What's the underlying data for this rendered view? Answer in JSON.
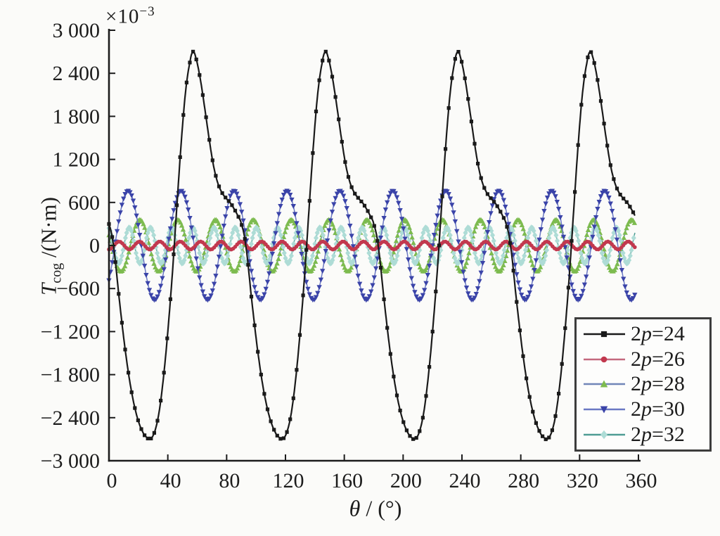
{
  "figure": {
    "y_axis_multiplier": {
      "base": "×10",
      "exponent": "−3"
    },
    "y_axis_label": {
      "symbol": "T",
      "subscript": "cog",
      "rest": " /(N·m)"
    },
    "x_axis_label": {
      "symbol": "θ",
      "rest": " / (°)"
    }
  },
  "chart_data": {
    "type": "line",
    "title": "",
    "xlabel": "θ / (°)",
    "ylabel": "T_cog /(N·m), values ×10^−3",
    "x_range": [
      0,
      360
    ],
    "y_range": [
      -3000,
      3000
    ],
    "grid": false,
    "legend_position": "lower-right",
    "x_sample_end": 357.6,
    "x_ticks": [
      {
        "v": 0,
        "label": "0"
      },
      {
        "v": 40,
        "label": "40"
      },
      {
        "v": 80,
        "label": "80"
      },
      {
        "v": 120,
        "label": "120"
      },
      {
        "v": 160,
        "label": "160"
      },
      {
        "v": 200,
        "label": "200"
      },
      {
        "v": 240,
        "label": "240"
      },
      {
        "v": 280,
        "label": "280"
      },
      {
        "v": 320,
        "label": "320"
      },
      {
        "v": 360,
        "label": "360"
      }
    ],
    "y_ticks": [
      {
        "v": 3000,
        "label": "3 000"
      },
      {
        "v": 2400,
        "label": "2 400"
      },
      {
        "v": 1800,
        "label": "1 800"
      },
      {
        "v": 1200,
        "label": "1 200"
      },
      {
        "v": 600,
        "label": "600"
      },
      {
        "v": 0,
        "label": "0"
      },
      {
        "v": -600,
        "label": "−600"
      },
      {
        "v": -1200,
        "label": "−1 200"
      },
      {
        "v": -1800,
        "label": "−1 800"
      },
      {
        "v": -2400,
        "label": "−2 400"
      },
      {
        "v": -3000,
        "label": "−3 000"
      }
    ],
    "series": [
      {
        "name": "2p=24",
        "label": {
          "pre": "2",
          "italic": "p",
          "post": "=24"
        },
        "type": "piecewise_periodic",
        "period": 90,
        "cycles_per_rev": 4,
        "amplitude": 2700,
        "points": [
          [
            0,
            300
          ],
          [
            3,
            0
          ],
          [
            7,
            -750
          ],
          [
            11,
            -1450
          ],
          [
            15,
            -2000
          ],
          [
            19,
            -2380
          ],
          [
            23,
            -2600
          ],
          [
            26,
            -2680
          ],
          [
            28,
            -2700
          ],
          [
            31,
            -2600
          ],
          [
            34,
            -2330
          ],
          [
            37,
            -1850
          ],
          [
            40,
            -1200
          ],
          [
            43,
            -420
          ],
          [
            46,
            500
          ],
          [
            49,
            1400
          ],
          [
            52,
            2130
          ],
          [
            55,
            2550
          ],
          [
            57,
            2700
          ],
          [
            59,
            2620
          ],
          [
            62,
            2330
          ],
          [
            65,
            1930
          ],
          [
            68,
            1500
          ],
          [
            71,
            1120
          ],
          [
            74,
            870
          ],
          [
            77,
            730
          ],
          [
            80,
            650
          ],
          [
            83,
            580
          ],
          [
            86,
            480
          ],
          [
            88,
            400
          ]
        ],
        "line_color": "#1a1a1a",
        "line_width": 2.2,
        "marker": "square",
        "marker_color": "#1a1a1a",
        "marker_size": 5.2,
        "marker_step": 2.2,
        "z": 5
      },
      {
        "name": "2p=26",
        "label": {
          "pre": "2",
          "italic": "p",
          "post": "=26"
        },
        "type": "sine",
        "period": 13.846,
        "cycles_per_rev": 26,
        "amplitude": 55,
        "peak_at": 6.9,
        "line_color": "#c4687e",
        "line_width": 1.5,
        "marker": "circle",
        "marker_color": "#c2384e",
        "marker_size": 5.6,
        "marker_step": 1.3,
        "z": 4
      },
      {
        "name": "2p=28",
        "label": {
          "pre": "2",
          "italic": "p",
          "post": "=28"
        },
        "type": "sine",
        "period": 25.714,
        "cycles_per_rev": 14,
        "amplitude": 360,
        "peak_at": 21,
        "line_color": "#7086b8",
        "line_width": 1.5,
        "marker": "triangle-up",
        "marker_color": "#7dbb4f",
        "marker_size": 7,
        "marker_step": 0.9,
        "z": 1
      },
      {
        "name": "2p=30",
        "label": {
          "pre": "2",
          "italic": "p",
          "post": "=30"
        },
        "type": "sine",
        "period": 36,
        "cycles_per_rev": 10,
        "amplitude": 760,
        "peak_at": 13,
        "line_color": "#6b78c4",
        "line_width": 1.5,
        "marker": "triangle-down",
        "marker_color": "#3a43a8",
        "marker_size": 7,
        "marker_step": 1.1,
        "z": 3
      },
      {
        "name": "2p=32",
        "label": {
          "pre": "2",
          "italic": "p",
          "post": "=32"
        },
        "type": "sine",
        "period": 14.4,
        "cycles_per_rev": 25,
        "amplitude": 250,
        "peak_at": 13.8,
        "line_color": "#4f9c94",
        "line_width": 1.5,
        "marker": "diamond",
        "marker_color": "#aedcd6",
        "marker_size": 7.4,
        "marker_step": 0.8,
        "z": 2
      }
    ]
  }
}
